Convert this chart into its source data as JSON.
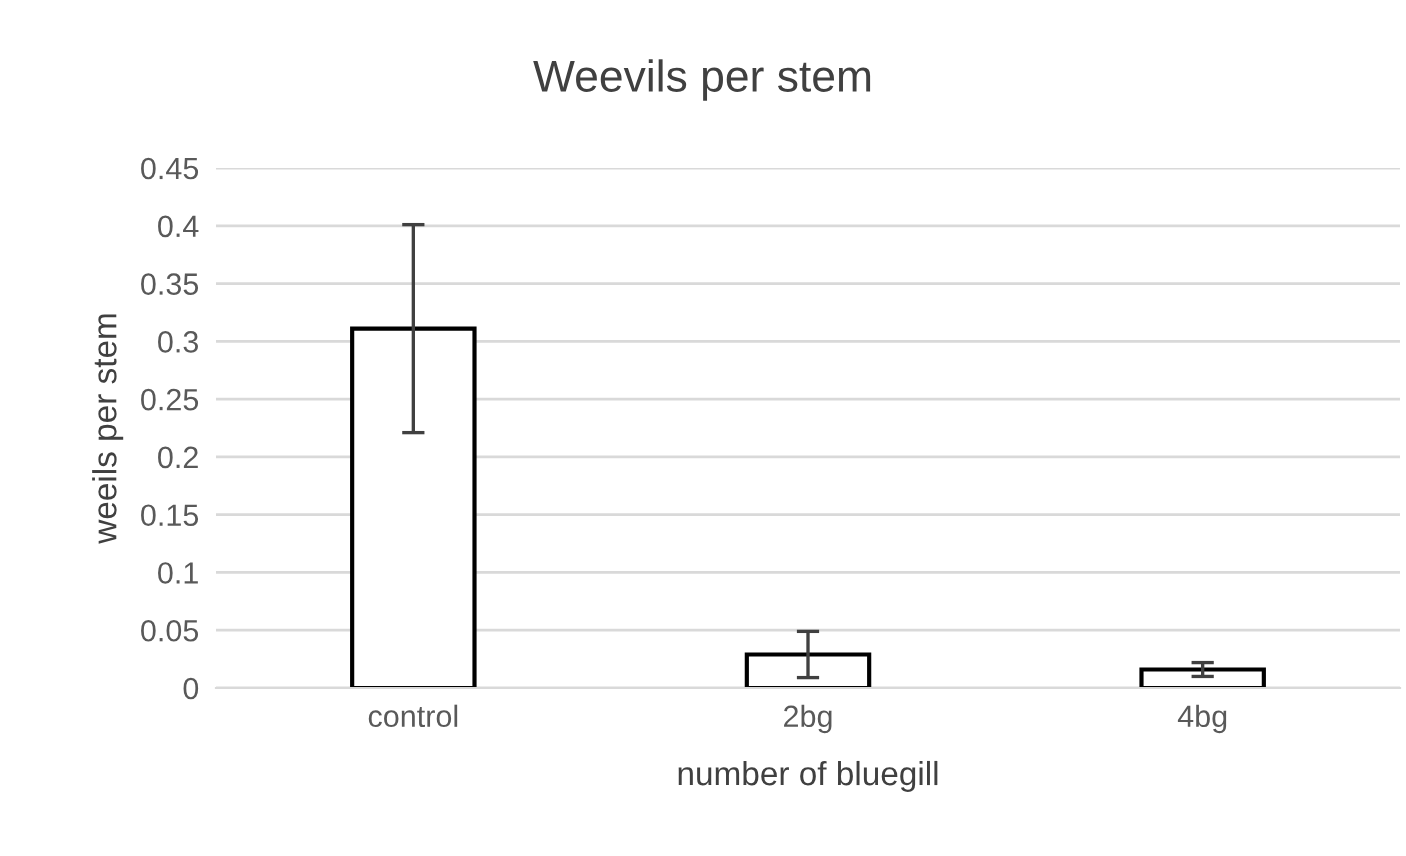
{
  "chart_data": {
    "type": "bar",
    "title": "Weevils per stem",
    "xlabel": "number of bluegill",
    "ylabel": "weeils per stem",
    "categories": [
      "control",
      "2bg",
      "4bg"
    ],
    "values": [
      0.311,
      0.029,
      0.016
    ],
    "errors": [
      0.09,
      0.02,
      0.006
    ],
    "color": "#ffffff",
    "ylim": [
      0,
      0.45
    ],
    "yticks": [
      0,
      0.05,
      0.1,
      0.15,
      0.2,
      0.25,
      0.3,
      0.35,
      0.4,
      0.45
    ],
    "grid": "y",
    "legend": false
  }
}
